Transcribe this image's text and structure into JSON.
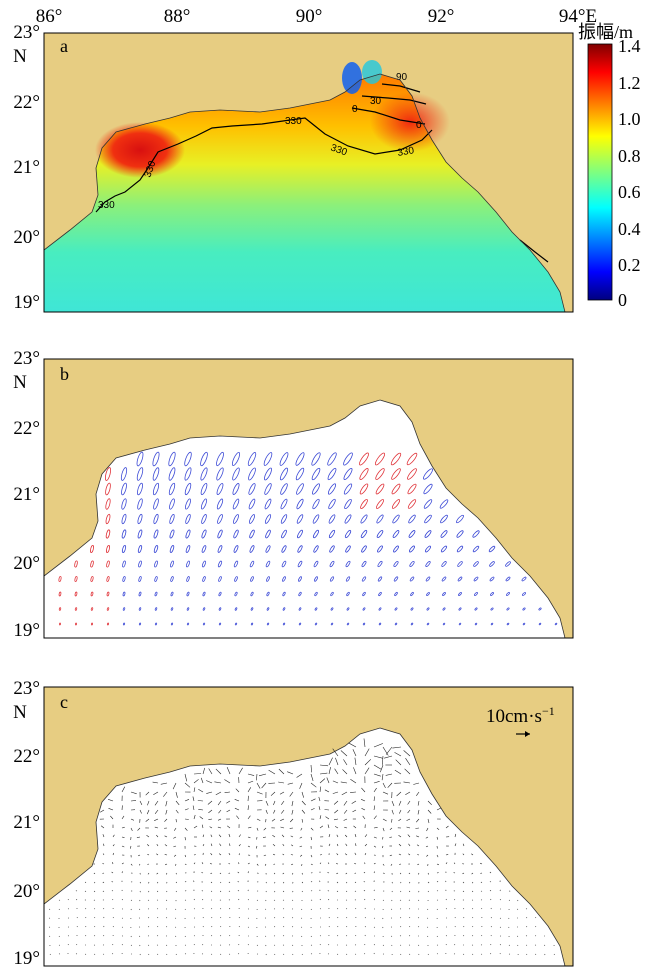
{
  "colors": {
    "land": "#E7CD82",
    "sea": "#FFFFFF",
    "ellipse_ccw": "#3D4BD6",
    "ellipse_cw": "#E0343A",
    "arrow": "#222222"
  },
  "axes": {
    "lon_ticks": [
      "86°",
      "88°",
      "90°",
      "92°",
      "94°E"
    ],
    "lat_ticks": [
      "23°",
      "22°",
      "21°",
      "20°",
      "19°"
    ],
    "lat_unit": "N"
  },
  "panels": [
    {
      "id": "a",
      "label": "a"
    },
    {
      "id": "b",
      "label": "b"
    },
    {
      "id": "c",
      "label": "c"
    }
  ],
  "colorbar": {
    "title": "振幅/m",
    "ticks": [
      "1.4",
      "1.2",
      "1.0",
      "0.8",
      "0.6",
      "0.4",
      "0.2",
      "0"
    ],
    "colormap": "jet",
    "range": [
      0,
      1.4
    ]
  },
  "contour_labels": [
    "330",
    "330",
    "330",
    "330",
    "0",
    "0",
    "90",
    "30",
    "330"
  ],
  "scale_arrow": {
    "label": "10cm·s",
    "exponent": "−1",
    "speed_cm_s": 10
  }
}
